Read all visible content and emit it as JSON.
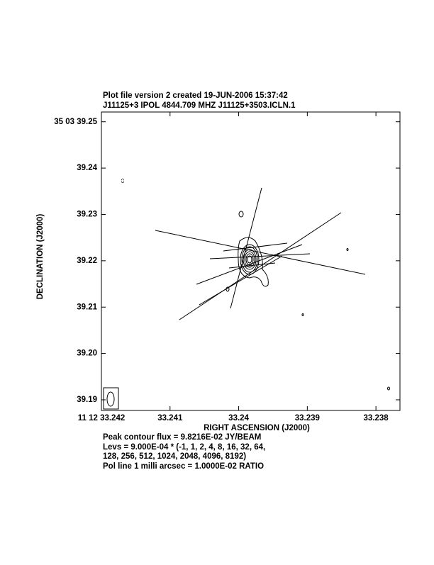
{
  "chart_data": {
    "type": "contour",
    "title": "Plot file version 2  created 19-JUN-2006 15:37:42",
    "subtitle": "J11125+3  IPOL  4844.709 MHZ  J11125+3503.ICLN.1",
    "x_label": "RIGHT ASCENSION (J2000)",
    "y_label": "DECLINATION (J2000)",
    "xlim": [
      33.242,
      33.23765
    ],
    "ylim": [
      39.1877,
      39.2521
    ],
    "xticks": [
      {
        "value": 33.242,
        "label": "11 12 33.242"
      },
      33.241,
      33.24,
      33.239,
      33.238
    ],
    "yticks": [
      {
        "value": 39.25,
        "label": "35 03 39.25"
      },
      39.24,
      39.23,
      39.22,
      39.21,
      {
        "value": 39.2,
        "label": "39.20"
      },
      39.19
    ],
    "notes": [
      "Peak contour flux =  9.8216E-02 JY/BEAM",
      "Levs = 9.000E-04 * (-1, 1, 2, 4, 8, 16, 32, 64,",
      "128, 256, 512, 1024, 2048, 4096, 8192)",
      "Pol line 1 milli arcsec =  1.0000E-02 RATIO"
    ]
  }
}
